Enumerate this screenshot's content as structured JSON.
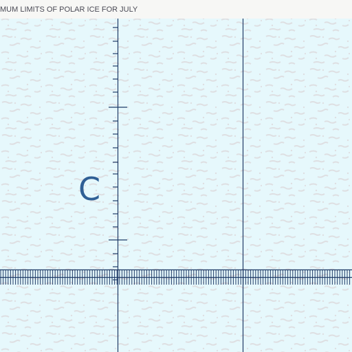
{
  "map": {
    "title": "MUM LIMITS OF POLAR ICE FOR JULY",
    "label": "C",
    "colors": {
      "ice": "#e6f8fc",
      "ice_texture": "#dcdfe2",
      "grid_line": "#1e3a66",
      "label": "#2f5f95",
      "title_strip": "#f7f7f5"
    }
  }
}
